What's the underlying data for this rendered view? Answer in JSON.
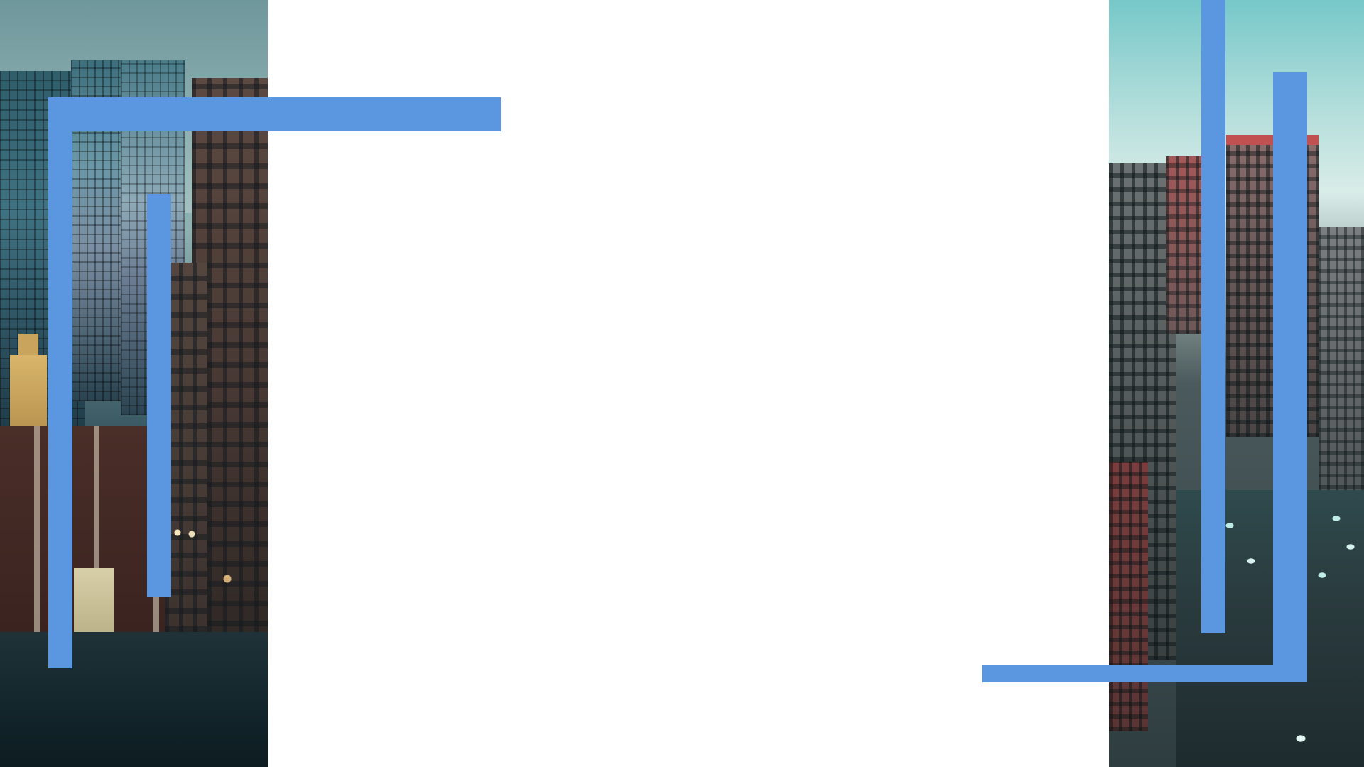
{
  "slide": {
    "background_color": "#ffffff",
    "accent_color": "#5b97e0"
  },
  "images": {
    "left": {
      "subject": "city-street-dusk-photo"
    },
    "right": {
      "subject": "aerial-city-street-photo"
    }
  },
  "decorations": {
    "bars": [
      "left-top-horizontal",
      "left-vertical",
      "left-inner-vertical",
      "right-tall-vertical",
      "right-outer-vertical",
      "right-bottom-horizontal"
    ]
  }
}
